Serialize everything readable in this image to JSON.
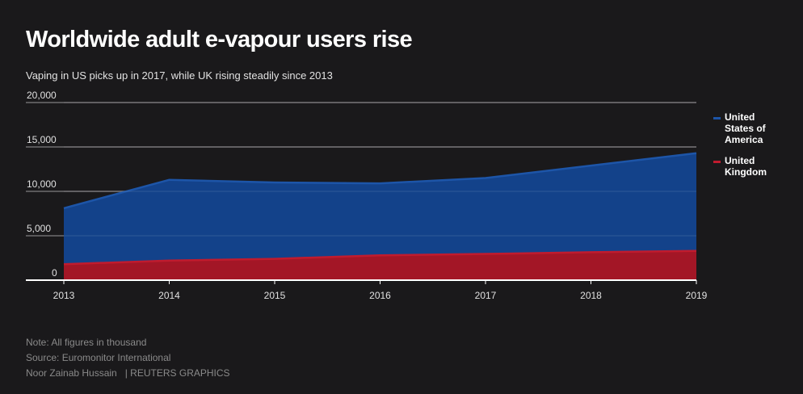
{
  "chart_data": {
    "type": "area",
    "title": "Worldwide adult e-vapour users rise",
    "subtitle": "Vaping in US picks up in 2017, while UK rising steadily since 2013",
    "x": [
      "2013",
      "2014",
      "2015",
      "2016",
      "2017",
      "2018",
      "2019"
    ],
    "ylim": [
      0,
      20000
    ],
    "yticks": [
      {
        "value": 0,
        "label": "0"
      },
      {
        "value": 5000,
        "label": "5,000"
      },
      {
        "value": 10000,
        "label": "10,000"
      },
      {
        "value": 15000,
        "label": "15,000"
      },
      {
        "value": 20000,
        "label": "20,000"
      }
    ],
    "grid": true,
    "legend_position": "right",
    "series": [
      {
        "name": "United States of America",
        "color": "#13428a",
        "line_color": "#1d55a8",
        "values": [
          8100,
          11300,
          11000,
          10900,
          11500,
          12900,
          14300
        ]
      },
      {
        "name": "United Kingdom",
        "color": "#a31626",
        "line_color": "#c01b2e",
        "values": [
          1800,
          2200,
          2400,
          2800,
          2950,
          3150,
          3300
        ]
      }
    ]
  },
  "footer": {
    "note": "Note: All figures in thousand",
    "source": "Source: Euromonitor International",
    "author": "Noor Zainab Hussain",
    "brand": "| REUTERS GRAPHICS"
  }
}
